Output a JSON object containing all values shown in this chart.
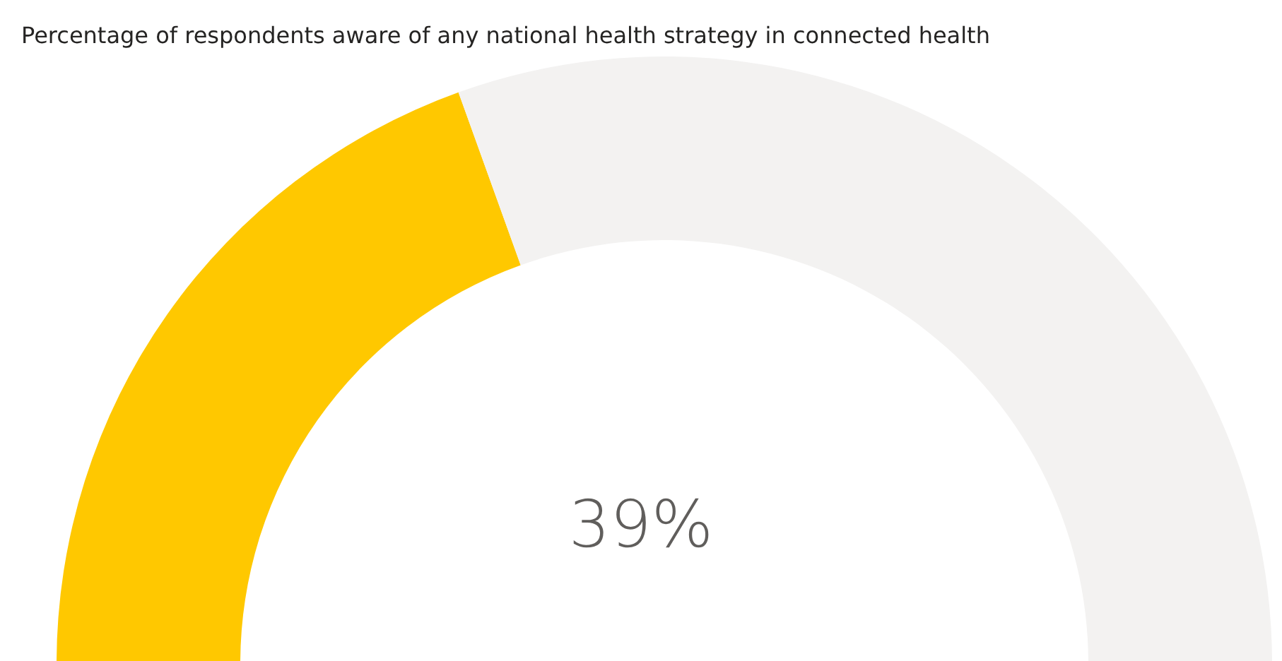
{
  "chart_data": {
    "type": "donut",
    "title": "Percentage of respondents aware of any national health strategy in connected health",
    "categories": [
      null,
      null
    ],
    "values": [
      39,
      61
    ],
    "colors": [
      "#ffc800",
      "#f3f2f1"
    ],
    "annotations": [
      "39%"
    ]
  }
}
